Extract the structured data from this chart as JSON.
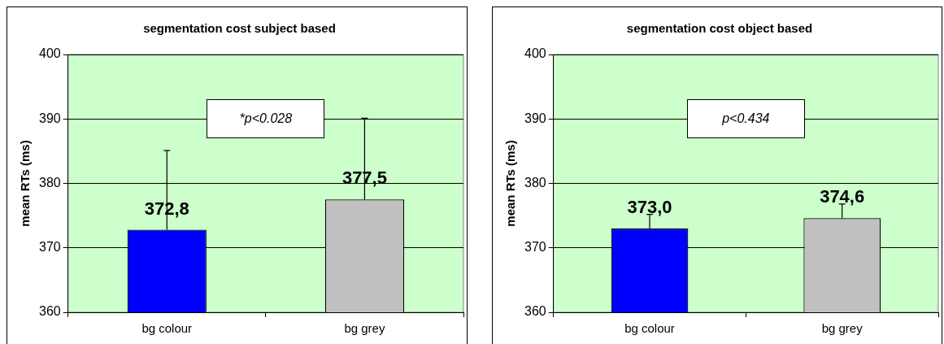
{
  "chart_data": [
    {
      "type": "bar",
      "title": "segmentation cost subject based",
      "ylabel": "mean RTs (ms)",
      "categories": [
        "bg colour",
        "bg grey"
      ],
      "values": [
        372.8,
        377.5
      ],
      "colors": [
        "#0000ff",
        "#c0c0c0"
      ],
      "errors": [
        [
          372.8,
          385.1
        ],
        [
          377.5,
          390.1
        ]
      ],
      "value_labels": [
        "372,8",
        "377,5"
      ],
      "ylim": [
        360,
        400
      ],
      "yticks": [
        360,
        370,
        380,
        390,
        400
      ],
      "grid": "y",
      "annotations": [
        "*p<0.028"
      ]
    },
    {
      "type": "bar",
      "title": "segmentation cost object based",
      "ylabel": "mean RTs (ms)",
      "categories": [
        "bg colour",
        "bg grey"
      ],
      "values": [
        373.0,
        374.6
      ],
      "colors": [
        "#0000ff",
        "#c0c0c0"
      ],
      "errors": [
        [
          373.0,
          375.2
        ],
        [
          374.6,
          376.8
        ]
      ],
      "value_labels": [
        "373,0",
        "374,6"
      ],
      "ylim": [
        360,
        400
      ],
      "yticks": [
        360,
        370,
        380,
        390,
        400
      ],
      "grid": "y",
      "annotations": [
        "p<0.434"
      ]
    }
  ]
}
